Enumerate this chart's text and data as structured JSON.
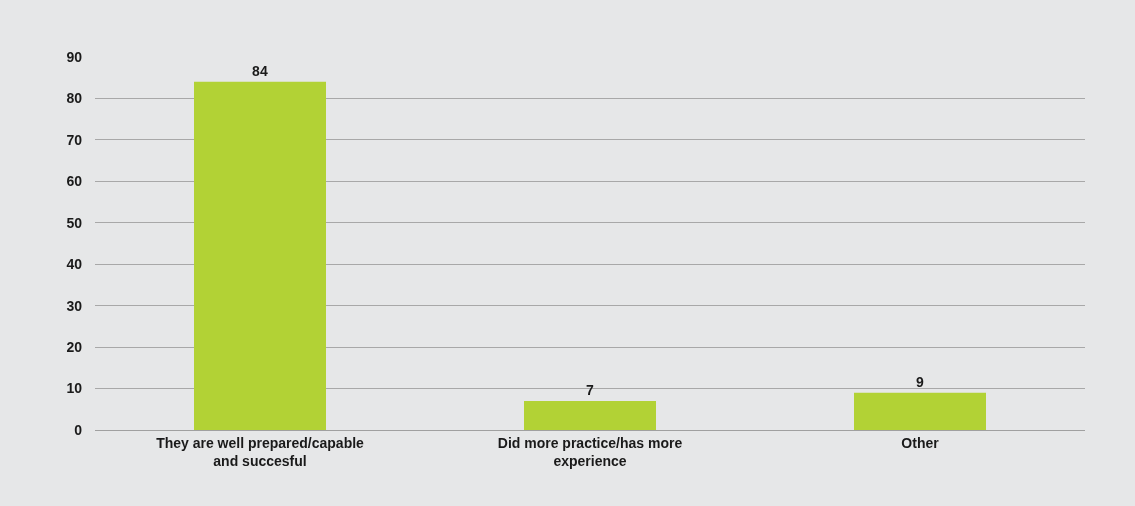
{
  "chart_data": {
    "type": "bar",
    "categories": [
      "They are well prepared/capable and succesful",
      "Did more practice/has more experience",
      "Other"
    ],
    "values": [
      84,
      7,
      9
    ],
    "color": "#b2d235",
    "data_labels": true,
    "ylim": [
      0,
      90
    ],
    "yticks": [
      0,
      10,
      20,
      30,
      40,
      50,
      60,
      70,
      80,
      90
    ],
    "grid": "y",
    "legend": false
  }
}
